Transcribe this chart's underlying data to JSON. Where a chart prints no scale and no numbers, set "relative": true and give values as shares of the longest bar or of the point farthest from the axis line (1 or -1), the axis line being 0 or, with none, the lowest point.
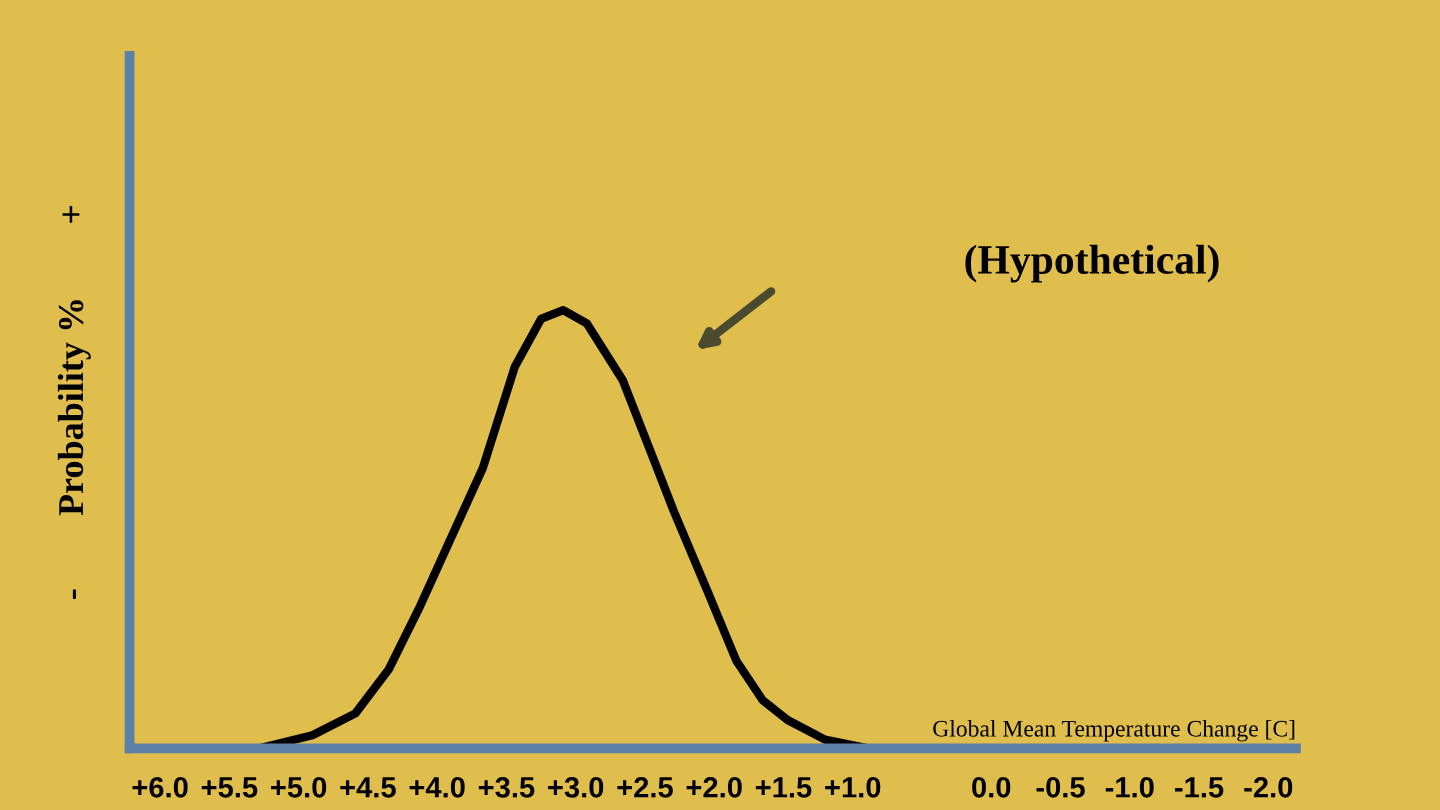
{
  "chart_data": {
    "type": "line",
    "relative": true,
    "xlabel": "Global Mean Temperature Change [C]",
    "ylabel": "-        Probability %        +",
    "annotations": [
      "(Hypothetical)"
    ],
    "x": [
      5.29,
      4.9,
      4.59,
      4.35,
      4.13,
      3.9,
      3.67,
      3.44,
      3.25,
      3.09,
      2.92,
      2.66,
      2.45,
      2.29,
      2.05,
      1.84,
      1.65,
      1.47,
      1.2,
      0.89
    ],
    "values": [
      0,
      0.03,
      0.08,
      0.18,
      0.32,
      0.48,
      0.64,
      0.87,
      0.98,
      1,
      0.97,
      0.84,
      0.67,
      0.54,
      0.36,
      0.2,
      0.11,
      0.065,
      0.02,
      0
    ],
    "color": "#000000",
    "xlim": [
      6.22,
      -2.2
    ],
    "xticks": [
      {
        "value": 6,
        "label": "+6.0"
      },
      {
        "value": 5.5,
        "label": "+5.5"
      },
      {
        "value": 5,
        "label": "+5.0"
      },
      {
        "value": 4.5,
        "label": "+4.5"
      },
      {
        "value": 4,
        "label": "+4.0"
      },
      {
        "value": 3.5,
        "label": "+3.5"
      },
      {
        "value": 3,
        "label": "+3.0"
      },
      {
        "value": 2.5,
        "label": "+2.5"
      },
      {
        "value": 2,
        "label": "+2.0"
      },
      {
        "value": 1.5,
        "label": "+1.5"
      },
      {
        "value": 1,
        "label": "+1.0"
      },
      {
        "value": 0,
        "label": "0.0"
      },
      {
        "value": -0.5,
        "label": "-0.5"
      },
      {
        "value": -1,
        "label": "-1.0"
      },
      {
        "value": -1.5,
        "label": "-1.5"
      },
      {
        "value": -2,
        "label": "-2.0"
      }
    ]
  }
}
